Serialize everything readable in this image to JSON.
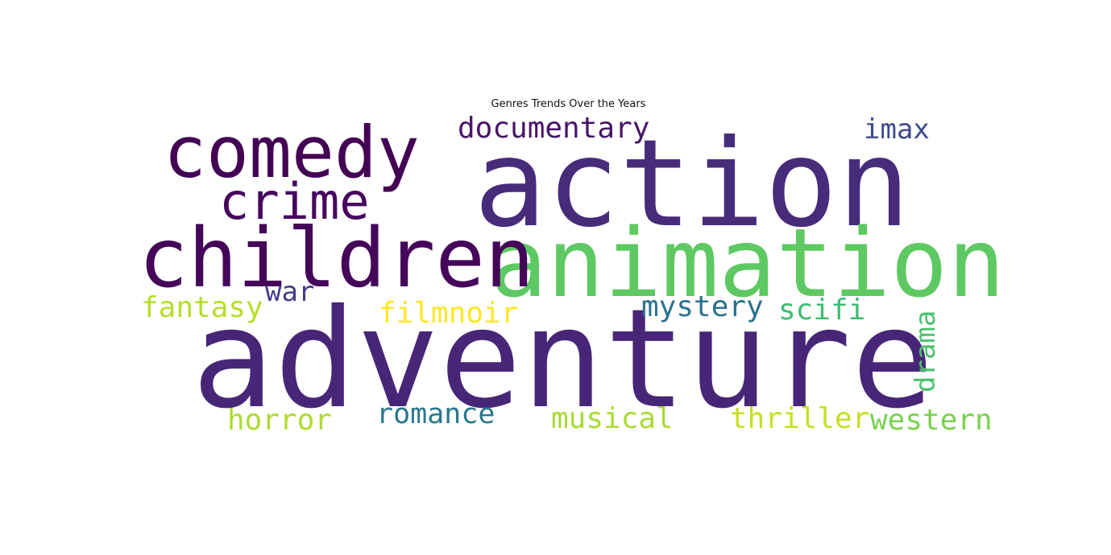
{
  "chart_data": {
    "type": "wordcloud",
    "title": "Genres Trends Over the Years",
    "words": [
      {
        "text": "adventure",
        "color": "#482677",
        "weight": 1.0
      },
      {
        "text": "action",
        "color": "#472c7a",
        "weight": 0.95
      },
      {
        "text": "animation",
        "color": "#5ec962",
        "weight": 0.78
      },
      {
        "text": "children",
        "color": "#450559",
        "weight": 0.72
      },
      {
        "text": "comedy",
        "color": "#440154",
        "weight": 0.62
      },
      {
        "text": "crime",
        "color": "#46085c",
        "weight": 0.42
      },
      {
        "text": "documentary",
        "color": "#481467",
        "weight": 0.26
      },
      {
        "text": "imax",
        "color": "#3e4989",
        "weight": 0.24
      },
      {
        "text": "war",
        "color": "#433e85",
        "weight": 0.24
      },
      {
        "text": "fantasy",
        "color": "#b5de2b",
        "weight": 0.25
      },
      {
        "text": "filmnoir",
        "color": "#fde725",
        "weight": 0.25
      },
      {
        "text": "mystery",
        "color": "#2c728e",
        "weight": 0.25
      },
      {
        "text": "scifi",
        "color": "#3dbc74",
        "weight": 0.25
      },
      {
        "text": "drama",
        "color": "#4ac16d",
        "weight": 0.24
      },
      {
        "text": "horror",
        "color": "#addc30",
        "weight": 0.25
      },
      {
        "text": "romance",
        "color": "#2a788e",
        "weight": 0.24
      },
      {
        "text": "musical",
        "color": "#a8db34",
        "weight": 0.25
      },
      {
        "text": "thriller",
        "color": "#c8e020",
        "weight": 0.25
      },
      {
        "text": "western",
        "color": "#7ad151",
        "weight": 0.25
      }
    ]
  }
}
